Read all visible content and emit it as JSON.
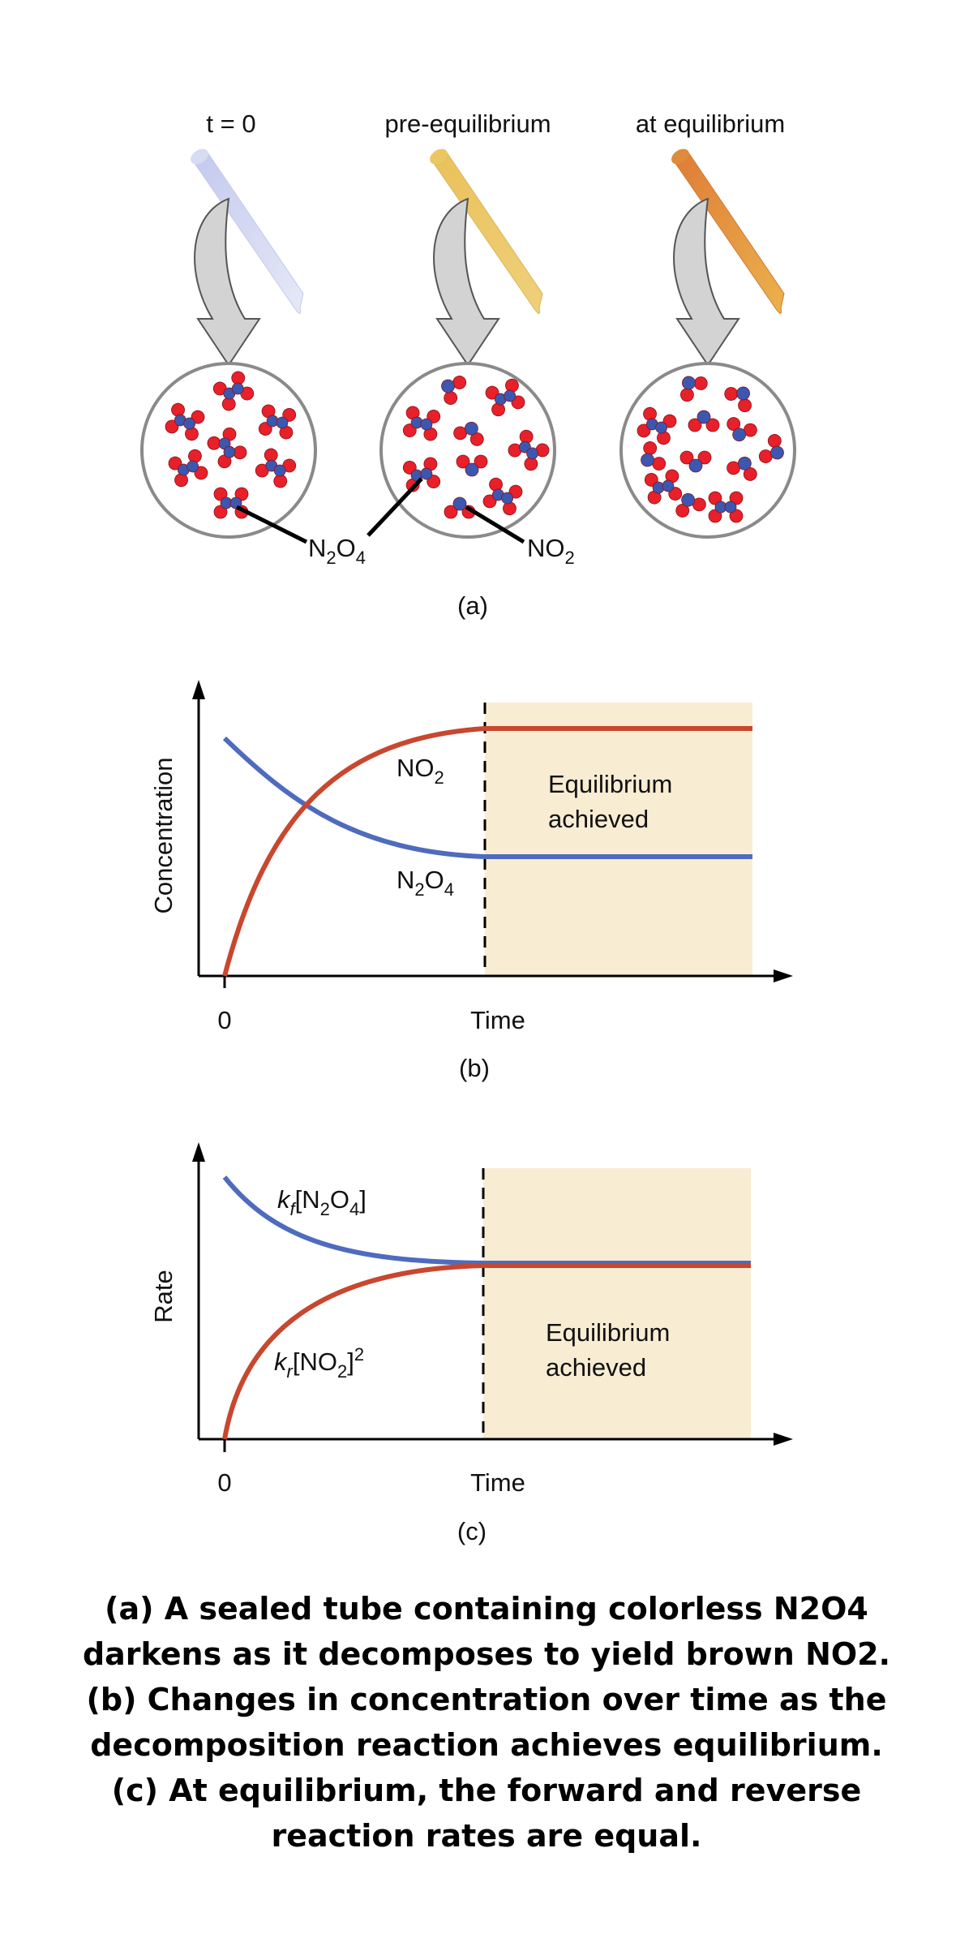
{
  "panel_a": {
    "tube_labels": [
      "t = 0",
      "pre-equilibrium",
      "at equilibrium"
    ],
    "label_n2o4": {
      "main": "N",
      "sub1": "2",
      "mid": "O",
      "sub2": "4"
    },
    "label_no2": {
      "main": "NO",
      "sub": "2"
    },
    "panel_label": "(a)",
    "tube_colors": [
      "#d6daf0",
      "#ecc764",
      "#e08a3c"
    ],
    "molecule_colors": {
      "oxygen": "#e8202a",
      "nitrogen": "#3c57b0"
    }
  },
  "panel_b": {
    "ylabel": "Concentration",
    "xlabel": "Time",
    "origin_label": "0",
    "curve_label_no2": {
      "main": "NO",
      "sub": "2"
    },
    "curve_label_n2o4": {
      "main": "N",
      "sub1": "2",
      "mid": "O",
      "sub2": "4"
    },
    "shaded_label": [
      "Equilibrium",
      "achieved"
    ],
    "panel_label": "(b)"
  },
  "panel_c": {
    "ylabel": "Rate",
    "xlabel": "Time",
    "origin_label": "0",
    "forward_label": {
      "k": "k",
      "ksub": "f",
      "rest": "[N",
      "sub1": "2",
      "mid": "O",
      "sub2": "4",
      "end": "]"
    },
    "reverse_label": {
      "k": "k",
      "ksub": "r",
      "rest": "[NO",
      "sub": "2",
      "end": "]",
      "sup": "2"
    },
    "shaded_label": [
      "Equilibrium",
      "achieved"
    ],
    "panel_label": "(c)"
  },
  "colors": {
    "no2_curve": "#c8472e",
    "n2o4_curve": "#4f6bbd",
    "shade": "#f8ecd2"
  },
  "caption": [
    "(a) A sealed tube containing colorless N2O4",
    "darkens as it decomposes to yield brown NO2.",
    "(b) Changes in concentration over time as the",
    "decomposition reaction achieves equilibrium.",
    "(c) At equilibrium, the forward and reverse",
    "reaction rates are equal."
  ]
}
